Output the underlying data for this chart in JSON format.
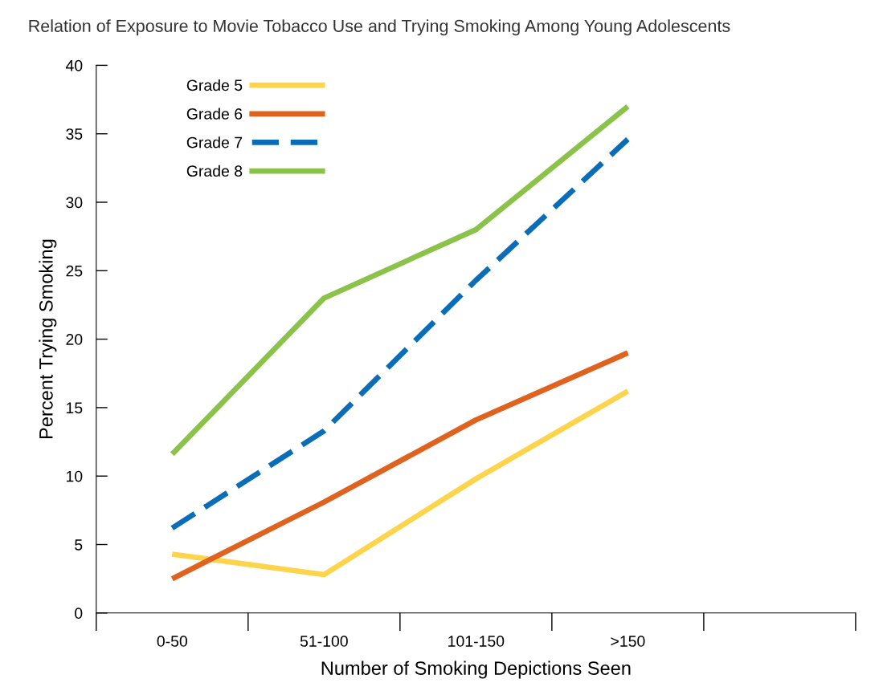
{
  "chart_data": {
    "type": "line",
    "title": "Relation of Exposure to Movie Tobacco Use and Trying Smoking Among Young Adolescents",
    "xlabel": "Number of Smoking Depictions Seen",
    "ylabel": "Percent Trying Smoking",
    "categories": [
      "0-50",
      "51-100",
      "101-150",
      ">150"
    ],
    "series": [
      {
        "name": "Grade 5",
        "color": "#fdd44b",
        "values": [
          4.3,
          2.8,
          9.8,
          16.2
        ]
      },
      {
        "name": "Grade 6",
        "color": "#e0621f",
        "values": [
          2.5,
          8.1,
          14.1,
          19.0
        ]
      },
      {
        "name": "Grade 7",
        "color": "#0b6db7",
        "values": [
          6.2,
          13.3,
          24.3,
          34.6
        ],
        "line_style": "dashed"
      },
      {
        "name": "Grade 8",
        "color": "#8bc34a",
        "values": [
          11.6,
          23.0,
          28.0,
          37.0
        ]
      }
    ],
    "ylim": [
      0,
      40
    ],
    "yticks": [
      0,
      5,
      10,
      15,
      20,
      25,
      30,
      35,
      40
    ],
    "grid": false,
    "legend": "top left",
    "marker": "none",
    "line_style": "solid"
  }
}
